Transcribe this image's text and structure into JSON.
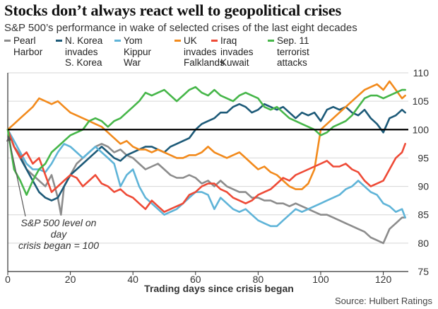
{
  "title": "Stocks don’t always react well to geopolitical crises",
  "subtitle": "S&P 500’s performance in wake of selected crises of the last eight decades",
  "source": "Source: Hulbert Ratings",
  "annotation": "S&P 500 level on day\ncrisis began = 100",
  "chart_data": {
    "type": "line",
    "title": "Stocks don’t always react well to geopolitical crises",
    "subtitle": "S&P 500’s performance in wake of selected crises of the last eight decades",
    "xlabel": "Trading days since crisis began",
    "ylabel": "",
    "xlim": [
      0,
      128
    ],
    "ylim": [
      75,
      110
    ],
    "xticks": [
      0,
      20,
      40,
      60,
      80,
      100,
      120
    ],
    "yticks": [
      75,
      80,
      85,
      90,
      95,
      100,
      105,
      110
    ],
    "y_axis_position": "right",
    "reference_line": 100,
    "legend_position": "top",
    "annotation": "S&P 500 level on day crisis began = 100",
    "series": [
      {
        "name": "Pearl Harbor",
        "label": "Pearl\nHarbor",
        "color": "#8c8c8c",
        "x": [
          0,
          2,
          4,
          6,
          8,
          10,
          12,
          14,
          16,
          17,
          18,
          20,
          22,
          24,
          26,
          28,
          30,
          32,
          34,
          36,
          38,
          40,
          42,
          44,
          46,
          48,
          50,
          52,
          54,
          56,
          58,
          60,
          62,
          64,
          66,
          68,
          70,
          72,
          74,
          76,
          78,
          80,
          82,
          84,
          86,
          88,
          90,
          92,
          94,
          96,
          98,
          100,
          102,
          104,
          106,
          108,
          110,
          112,
          114,
          116,
          118,
          120,
          122,
          124,
          126,
          127
        ],
        "y": [
          100,
          97,
          95.5,
          93,
          92,
          91,
          90,
          92,
          88,
          85,
          90,
          92,
          94,
          95,
          96,
          97,
          97.5,
          97,
          96,
          96.5,
          95.5,
          95,
          94,
          93,
          93.5,
          94,
          93,
          92,
          91.5,
          91.5,
          92,
          91.5,
          90.5,
          91,
          90,
          91,
          90,
          89.5,
          89,
          89,
          88,
          88,
          87.5,
          87.5,
          87,
          87,
          86.5,
          87,
          86.5,
          86,
          85.5,
          85,
          85,
          84.5,
          84,
          83.5,
          83,
          82.5,
          82,
          81,
          80.5,
          80,
          82.5,
          83.5,
          84.5,
          84.5
        ]
      },
      {
        "name": "N. Korea invades S. Korea",
        "label": "N. Korea\ninvades\nS. Korea",
        "color": "#1d5a78",
        "x": [
          0,
          2,
          4,
          6,
          8,
          10,
          12,
          14,
          16,
          18,
          20,
          22,
          24,
          26,
          28,
          30,
          32,
          34,
          36,
          38,
          40,
          42,
          44,
          46,
          48,
          50,
          52,
          54,
          56,
          58,
          60,
          62,
          64,
          66,
          68,
          70,
          72,
          74,
          76,
          78,
          80,
          82,
          84,
          86,
          88,
          90,
          92,
          94,
          96,
          98,
          100,
          102,
          104,
          106,
          108,
          110,
          112,
          114,
          116,
          118,
          120,
          122,
          124,
          126,
          127
        ],
        "y": [
          100,
          97,
          95,
          93,
          91,
          89,
          88,
          87.5,
          88,
          90,
          92,
          93,
          94,
          95,
          96,
          97,
          96,
          95,
          94.5,
          95.5,
          96,
          96.5,
          97,
          97,
          96.5,
          96,
          97,
          97.5,
          98,
          98.5,
          100,
          101,
          101.5,
          102,
          103,
          103,
          104,
          104.5,
          104,
          103,
          103.5,
          104.5,
          104,
          103.5,
          104,
          103,
          102,
          103,
          102.5,
          103,
          101.5,
          103.5,
          104,
          103.5,
          104,
          103,
          102.5,
          103.5,
          102,
          101,
          99.5,
          102,
          102.5,
          103.5,
          103
        ]
      },
      {
        "name": "Yom Kippur War",
        "label": "Yom\nKippur\nWar",
        "color": "#5fb4d8",
        "x": [
          0,
          2,
          4,
          6,
          8,
          10,
          12,
          14,
          16,
          18,
          20,
          22,
          24,
          26,
          28,
          30,
          32,
          34,
          36,
          38,
          40,
          42,
          44,
          46,
          48,
          50,
          52,
          54,
          56,
          58,
          60,
          62,
          64,
          66,
          68,
          70,
          72,
          74,
          76,
          78,
          80,
          82,
          84,
          86,
          88,
          90,
          92,
          94,
          96,
          98,
          100,
          102,
          104,
          106,
          108,
          110,
          112,
          114,
          116,
          118,
          120,
          122,
          124,
          126,
          127
        ],
        "y": [
          100,
          98,
          96,
          94,
          93,
          93,
          92.5,
          94,
          96,
          97.5,
          97,
          96,
          95,
          96,
          97,
          96,
          95,
          94,
          90,
          92,
          93,
          90,
          88,
          87,
          86,
          85,
          85.5,
          86,
          87,
          88,
          89,
          89,
          88.5,
          86,
          88,
          87,
          86,
          85.5,
          86,
          85,
          84,
          83.5,
          83,
          83,
          84,
          85,
          86,
          85.5,
          86,
          86.5,
          87,
          87.5,
          88,
          88.5,
          89.5,
          90,
          91,
          90,
          89,
          88.5,
          87,
          86.5,
          85.5,
          86,
          84.5
        ]
      },
      {
        "name": "UK invades Falklands",
        "label": "UK\ninvades\nFalklands",
        "color": "#f28a1c",
        "x": [
          0,
          2,
          4,
          6,
          8,
          10,
          12,
          14,
          16,
          18,
          20,
          22,
          24,
          26,
          28,
          30,
          32,
          34,
          36,
          38,
          40,
          42,
          44,
          46,
          48,
          50,
          52,
          54,
          56,
          58,
          60,
          62,
          64,
          66,
          68,
          70,
          72,
          74,
          76,
          78,
          80,
          82,
          84,
          86,
          88,
          90,
          92,
          94,
          96,
          98,
          100,
          102,
          104,
          106,
          108,
          110,
          112,
          114,
          116,
          118,
          120,
          122,
          124,
          126,
          127
        ],
        "y": [
          100,
          101,
          102,
          103,
          104,
          105.5,
          105,
          104.5,
          105,
          104,
          103,
          102.5,
          102,
          101.5,
          101,
          100.5,
          99.5,
          98.5,
          97.5,
          98,
          97,
          96.5,
          96.5,
          96,
          96.5,
          96,
          95.5,
          95,
          95,
          95.5,
          95.5,
          96,
          97,
          96,
          95.5,
          95,
          95.5,
          96,
          95,
          94,
          93,
          93.5,
          92.5,
          92,
          91,
          90,
          89.5,
          89.5,
          90.5,
          93,
          100,
          101,
          102,
          103,
          104,
          105,
          106,
          107,
          107.5,
          108,
          107,
          108.5,
          107,
          105.5,
          106
        ]
      },
      {
        "name": "Iraq invades Kuwait",
        "label": "Iraq\ninvades\nKuwait",
        "color": "#ee4a36",
        "x": [
          0,
          2,
          4,
          6,
          8,
          10,
          12,
          14,
          16,
          18,
          20,
          22,
          24,
          26,
          28,
          30,
          32,
          34,
          36,
          38,
          40,
          42,
          44,
          46,
          48,
          50,
          52,
          54,
          56,
          58,
          60,
          62,
          64,
          66,
          68,
          70,
          72,
          74,
          76,
          78,
          80,
          82,
          84,
          86,
          88,
          90,
          92,
          94,
          96,
          98,
          100,
          102,
          104,
          106,
          108,
          110,
          112,
          114,
          116,
          118,
          120,
          122,
          124,
          126,
          127
        ],
        "y": [
          100,
          97,
          95,
          96,
          94,
          95,
          92,
          89,
          90,
          91,
          92,
          91.5,
          90,
          91,
          92,
          90.5,
          90,
          89,
          89.5,
          88.5,
          88,
          87,
          86,
          87.5,
          86.5,
          85.5,
          86,
          86.5,
          87,
          88.5,
          89,
          90,
          90.5,
          90.5,
          89.5,
          89,
          88,
          87.5,
          87,
          87.5,
          88.5,
          89,
          89.5,
          90.5,
          91.5,
          91,
          92,
          92.5,
          93,
          93.5,
          94,
          94.5,
          93.5,
          93.5,
          94,
          93,
          92.5,
          91,
          90,
          90.5,
          91,
          93,
          95,
          96,
          97.5
        ]
      },
      {
        "name": "Sep. 11 terrorist attacks",
        "label": "Sep. 11\nterrorist\nattacks",
        "color": "#46b649",
        "x": [
          0,
          2,
          4,
          6,
          8,
          10,
          12,
          14,
          16,
          18,
          20,
          22,
          24,
          26,
          28,
          30,
          32,
          34,
          36,
          38,
          40,
          42,
          44,
          46,
          48,
          50,
          52,
          54,
          56,
          58,
          60,
          62,
          64,
          66,
          68,
          70,
          72,
          74,
          76,
          78,
          80,
          82,
          84,
          86,
          88,
          90,
          92,
          94,
          96,
          98,
          100,
          102,
          104,
          106,
          108,
          110,
          112,
          114,
          116,
          118,
          120,
          122,
          124,
          126,
          127
        ],
        "y": [
          100,
          93,
          91,
          88.5,
          91,
          93,
          94,
          96,
          97,
          98,
          99,
          99.5,
          100,
          101.5,
          102,
          101.5,
          100.5,
          101.5,
          102,
          103,
          104,
          105,
          106.5,
          106,
          106.5,
          107,
          106,
          105,
          106,
          107,
          107.5,
          106.5,
          106,
          107,
          106,
          105.5,
          105,
          106,
          106.5,
          106,
          105.5,
          104,
          103.5,
          104,
          103,
          102,
          101.5,
          101,
          100.5,
          100,
          99,
          99.5,
          100.5,
          101,
          101.5,
          102.5,
          104,
          105.5,
          106,
          106,
          105.5,
          106,
          106.5,
          107,
          107
        ]
      }
    ]
  }
}
